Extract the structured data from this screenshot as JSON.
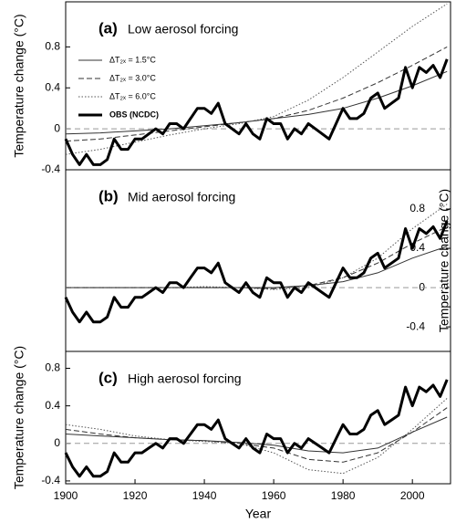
{
  "chart_data": [
    {
      "type": "line",
      "label": "(a)",
      "title": "Low aerosol forcing",
      "ylabel": "Temperature change (°C)",
      "ylabel_side": "left",
      "xlim": [
        1900,
        2011
      ],
      "ylim": [
        -0.4,
        1.24
      ],
      "yticks": [
        -0.4,
        0,
        0.4,
        0.8
      ],
      "reference_line": 0,
      "legend": "upper left",
      "x": [
        1900,
        1902,
        1904,
        1906,
        1908,
        1910,
        1912,
        1914,
        1916,
        1918,
        1920,
        1922,
        1924,
        1926,
        1928,
        1930,
        1932,
        1934,
        1936,
        1938,
        1940,
        1942,
        1944,
        1946,
        1948,
        1950,
        1952,
        1954,
        1956,
        1958,
        1960,
        1962,
        1964,
        1966,
        1968,
        1970,
        1972,
        1974,
        1976,
        1978,
        1980,
        1982,
        1984,
        1986,
        1988,
        1990,
        1992,
        1994,
        1996,
        1998,
        2000,
        2002,
        2004,
        2006,
        2008,
        2010
      ],
      "series": [
        {
          "name": "ΔT₂ₓ = 1.5°C",
          "color": "#333333",
          "dash": "solid",
          "width": 1,
          "x": [
            1900,
            1910,
            1920,
            1930,
            1940,
            1950,
            1960,
            1970,
            1980,
            1990,
            2000,
            2010
          ],
          "values": [
            -0.05,
            -0.04,
            -0.02,
            0.0,
            0.03,
            0.06,
            0.1,
            0.14,
            0.2,
            0.3,
            0.42,
            0.56
          ]
        },
        {
          "name": "ΔT₂ₓ = 3.0°C",
          "color": "#333333",
          "dash": "dashed",
          "width": 1,
          "x": [
            1900,
            1910,
            1920,
            1930,
            1940,
            1950,
            1960,
            1970,
            1980,
            1990,
            2000,
            2010
          ],
          "values": [
            -0.12,
            -0.1,
            -0.06,
            -0.02,
            0.02,
            0.06,
            0.1,
            0.18,
            0.3,
            0.45,
            0.62,
            0.8
          ]
        },
        {
          "name": "ΔT₂ₓ = 6.0°C",
          "color": "#555555",
          "dash": "dotted",
          "width": 1,
          "x": [
            1900,
            1910,
            1920,
            1930,
            1940,
            1950,
            1960,
            1970,
            1980,
            1990,
            2000,
            2010
          ],
          "values": [
            -0.25,
            -0.2,
            -0.13,
            -0.06,
            0.0,
            0.05,
            0.12,
            0.28,
            0.5,
            0.75,
            1.0,
            1.22
          ]
        },
        {
          "name": "OBS (NCDC)",
          "color": "#000000",
          "dash": "solid",
          "width": 3,
          "values": [
            -0.1,
            -0.25,
            -0.35,
            -0.25,
            -0.35,
            -0.35,
            -0.3,
            -0.1,
            -0.2,
            -0.2,
            -0.1,
            -0.1,
            -0.05,
            0.0,
            -0.05,
            0.05,
            0.05,
            0.0,
            0.1,
            0.2,
            0.2,
            0.15,
            0.25,
            0.05,
            0.0,
            -0.05,
            0.05,
            -0.05,
            -0.1,
            0.1,
            0.05,
            0.05,
            -0.1,
            0.0,
            -0.05,
            0.05,
            0.0,
            -0.05,
            -0.1,
            0.05,
            0.2,
            0.1,
            0.1,
            0.15,
            0.3,
            0.35,
            0.2,
            0.25,
            0.3,
            0.6,
            0.4,
            0.6,
            0.55,
            0.62,
            0.5,
            0.68
          ]
        }
      ]
    },
    {
      "type": "line",
      "label": "(b)",
      "title": "Mid aerosol forcing",
      "ylabel": "Temperature change (°C)",
      "ylabel_side": "right",
      "xlim": [
        1900,
        2011
      ],
      "ylim": [
        -0.65,
        1.2
      ],
      "yticks": [
        -0.4,
        0,
        0.4,
        0.8
      ],
      "reference_line": 0,
      "x": [
        1900,
        1902,
        1904,
        1906,
        1908,
        1910,
        1912,
        1914,
        1916,
        1918,
        1920,
        1922,
        1924,
        1926,
        1928,
        1930,
        1932,
        1934,
        1936,
        1938,
        1940,
        1942,
        1944,
        1946,
        1948,
        1950,
        1952,
        1954,
        1956,
        1958,
        1960,
        1962,
        1964,
        1966,
        1968,
        1970,
        1972,
        1974,
        1976,
        1978,
        1980,
        1982,
        1984,
        1986,
        1988,
        1990,
        1992,
        1994,
        1996,
        1998,
        2000,
        2002,
        2004,
        2006,
        2008,
        2010
      ],
      "series": [
        {
          "color": "#333333",
          "dash": "solid",
          "width": 1,
          "x": [
            1900,
            1910,
            1920,
            1930,
            1940,
            1950,
            1960,
            1970,
            1980,
            1990,
            2000,
            2010
          ],
          "values": [
            0,
            0,
            0,
            0,
            0,
            0,
            0,
            0.02,
            0.06,
            0.15,
            0.3,
            0.42
          ]
        },
        {
          "color": "#333333",
          "dash": "dashed",
          "width": 1,
          "x": [
            1900,
            1910,
            1920,
            1930,
            1940,
            1950,
            1960,
            1970,
            1980,
            1990,
            2000,
            2010
          ],
          "values": [
            0,
            0,
            0,
            0,
            0,
            0,
            -0.01,
            0.02,
            0.1,
            0.25,
            0.45,
            0.62
          ]
        },
        {
          "color": "#555555",
          "dash": "dotted",
          "width": 1,
          "x": [
            1900,
            1910,
            1920,
            1930,
            1940,
            1950,
            1960,
            1970,
            1980,
            1990,
            2000,
            2010
          ],
          "values": [
            0,
            0,
            0,
            0,
            0.01,
            0,
            -0.02,
            0,
            0.1,
            0.3,
            0.6,
            0.85
          ]
        },
        {
          "color": "#000000",
          "dash": "solid",
          "width": 3,
          "values": [
            -0.1,
            -0.25,
            -0.35,
            -0.25,
            -0.35,
            -0.35,
            -0.3,
            -0.1,
            -0.2,
            -0.2,
            -0.1,
            -0.1,
            -0.05,
            0.0,
            -0.05,
            0.05,
            0.05,
            0.0,
            0.1,
            0.2,
            0.2,
            0.15,
            0.25,
            0.05,
            0.0,
            -0.05,
            0.05,
            -0.05,
            -0.1,
            0.1,
            0.05,
            0.05,
            -0.1,
            0.0,
            -0.05,
            0.05,
            0.0,
            -0.05,
            -0.1,
            0.05,
            0.2,
            0.1,
            0.1,
            0.15,
            0.3,
            0.35,
            0.2,
            0.25,
            0.3,
            0.6,
            0.4,
            0.6,
            0.55,
            0.62,
            0.5,
            0.68
          ]
        }
      ]
    },
    {
      "type": "line",
      "label": "(c)",
      "title": "High aerosol forcing",
      "ylabel": "Temperature change (°C)",
      "ylabel_side": "left",
      "xlabel": "Year",
      "xlim": [
        1900,
        2011
      ],
      "ylim": [
        -0.43,
        0.98
      ],
      "yticks": [
        -0.4,
        0,
        0.4,
        0.8
      ],
      "xticks": [
        1900,
        1920,
        1940,
        1960,
        1980,
        2000
      ],
      "reference_line": 0,
      "x": [
        1900,
        1902,
        1904,
        1906,
        1908,
        1910,
        1912,
        1914,
        1916,
        1918,
        1920,
        1922,
        1924,
        1926,
        1928,
        1930,
        1932,
        1934,
        1936,
        1938,
        1940,
        1942,
        1944,
        1946,
        1948,
        1950,
        1952,
        1954,
        1956,
        1958,
        1960,
        1962,
        1964,
        1966,
        1968,
        1970,
        1972,
        1974,
        1976,
        1978,
        1980,
        1982,
        1984,
        1986,
        1988,
        1990,
        1992,
        1994,
        1996,
        1998,
        2000,
        2002,
        2004,
        2006,
        2008,
        2010
      ],
      "series": [
        {
          "color": "#333333",
          "dash": "solid",
          "width": 1,
          "x": [
            1900,
            1910,
            1920,
            1930,
            1940,
            1950,
            1960,
            1970,
            1980,
            1990,
            2000,
            2010
          ],
          "values": [
            0.1,
            0.08,
            0.06,
            0.04,
            0.03,
            0.01,
            -0.02,
            -0.08,
            -0.1,
            -0.05,
            0.12,
            0.28
          ]
        },
        {
          "color": "#333333",
          "dash": "dashed",
          "width": 1,
          "x": [
            1900,
            1910,
            1920,
            1930,
            1940,
            1950,
            1960,
            1970,
            1980,
            1990,
            2000,
            2010
          ],
          "values": [
            0.15,
            0.1,
            0.06,
            0.04,
            0.03,
            0.0,
            -0.05,
            -0.17,
            -0.2,
            -0.1,
            0.12,
            0.38
          ]
        },
        {
          "color": "#555555",
          "dash": "dotted",
          "width": 1,
          "x": [
            1900,
            1910,
            1920,
            1930,
            1940,
            1950,
            1960,
            1970,
            1980,
            1990,
            2000,
            2010
          ],
          "values": [
            0.2,
            0.15,
            0.08,
            0.04,
            0.02,
            0.0,
            -0.1,
            -0.28,
            -0.32,
            -0.15,
            0.15,
            0.48
          ]
        },
        {
          "color": "#000000",
          "dash": "solid",
          "width": 3,
          "values": [
            -0.1,
            -0.25,
            -0.35,
            -0.25,
            -0.35,
            -0.35,
            -0.3,
            -0.1,
            -0.2,
            -0.2,
            -0.1,
            -0.1,
            -0.05,
            0.0,
            -0.05,
            0.05,
            0.05,
            0.0,
            0.1,
            0.2,
            0.2,
            0.15,
            0.25,
            0.05,
            0.0,
            -0.05,
            0.05,
            -0.05,
            -0.1,
            0.1,
            0.05,
            0.05,
            -0.1,
            0.0,
            -0.05,
            0.05,
            0.0,
            -0.05,
            -0.1,
            0.05,
            0.2,
            0.1,
            0.1,
            0.15,
            0.3,
            0.35,
            0.2,
            0.25,
            0.3,
            0.6,
            0.4,
            0.6,
            0.55,
            0.62,
            0.5,
            0.68
          ]
        }
      ]
    }
  ]
}
